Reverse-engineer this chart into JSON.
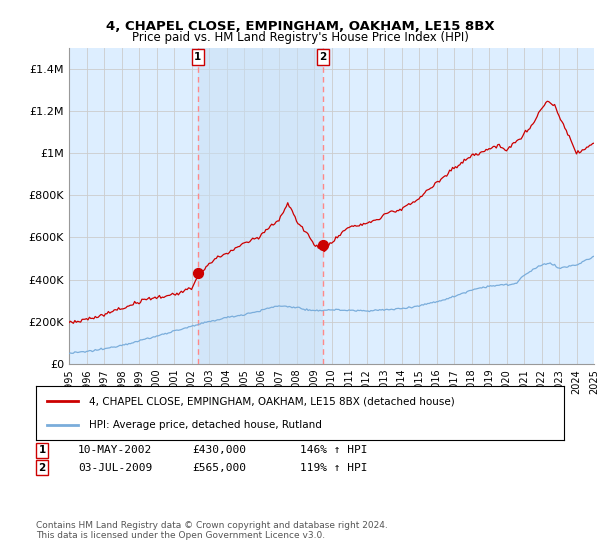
{
  "title": "4, CHAPEL CLOSE, EMPINGHAM, OAKHAM, LE15 8BX",
  "subtitle": "Price paid vs. HM Land Registry's House Price Index (HPI)",
  "ylim": [
    0,
    1500000
  ],
  "yticks": [
    0,
    200000,
    400000,
    600000,
    800000,
    1000000,
    1200000,
    1400000
  ],
  "ytick_labels": [
    "£0",
    "£200K",
    "£400K",
    "£600K",
    "£800K",
    "£1M",
    "£1.2M",
    "£1.4M"
  ],
  "xmin_year": 1995,
  "xmax_year": 2025,
  "xtick_years": [
    1995,
    1996,
    1997,
    1998,
    1999,
    2000,
    2001,
    2002,
    2003,
    2004,
    2005,
    2006,
    2007,
    2008,
    2009,
    2010,
    2011,
    2012,
    2013,
    2014,
    2015,
    2016,
    2017,
    2018,
    2019,
    2020,
    2021,
    2022,
    2023,
    2024,
    2025
  ],
  "sale1_year": 2002.36,
  "sale1_price": 430000,
  "sale1_label": "1",
  "sale1_date": "10-MAY-2002",
  "sale1_hpi_pct": "146%",
  "sale2_year": 2009.5,
  "sale2_price": 565000,
  "sale2_label": "2",
  "sale2_date": "03-JUL-2009",
  "sale2_hpi_pct": "119%",
  "hpi_color": "#7aaddb",
  "price_color": "#cc0000",
  "vline_color": "#ff8888",
  "shade_color": "#ddeeff",
  "grid_color": "#cccccc",
  "legend_label_price": "4, CHAPEL CLOSE, EMPINGHAM, OAKHAM, LE15 8BX (detached house)",
  "legend_label_hpi": "HPI: Average price, detached house, Rutland",
  "footnote": "Contains HM Land Registry data © Crown copyright and database right 2024.\nThis data is licensed under the Open Government Licence v3.0.",
  "background_color": "#ddeeff"
}
